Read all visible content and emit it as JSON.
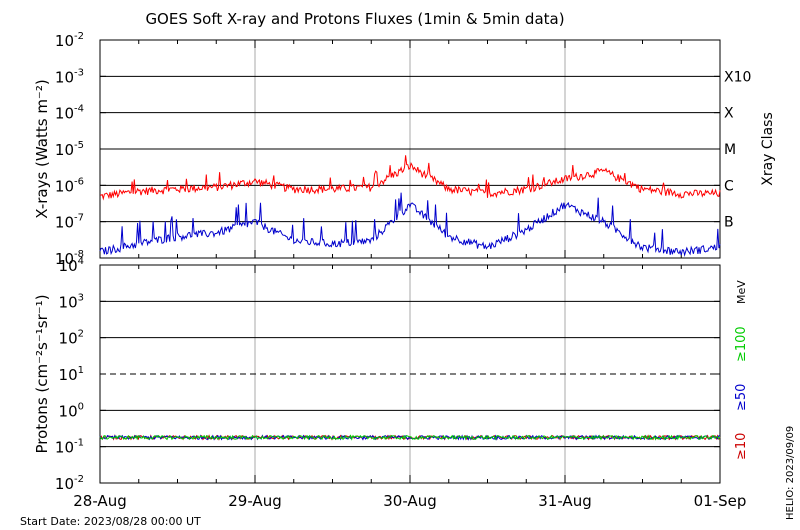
{
  "title": "GOES Soft X-ray and Protons Fluxes   (1min & 5min data)",
  "start_label": "Start Date: 2023/08/28 00:00 UT",
  "footer_credit": "HELIO: 2023/09/09",
  "chart_data": [
    {
      "type": "line",
      "panel": "xray",
      "ylabel": "X-rays (Watts m⁻²)",
      "right_label": "Xray Class",
      "y_scale": "log",
      "ylim": [
        1e-08,
        0.01
      ],
      "y_ticks": [
        {
          "base": "10",
          "exp": "-2"
        },
        {
          "base": "10",
          "exp": "-3"
        },
        {
          "base": "10",
          "exp": "-4"
        },
        {
          "base": "10",
          "exp": "-5"
        },
        {
          "base": "10",
          "exp": "-6"
        },
        {
          "base": "10",
          "exp": "-7"
        },
        {
          "base": "10",
          "exp": "-8"
        }
      ],
      "class_labels": [
        "X10",
        "X",
        "M",
        "C",
        "B"
      ],
      "horizontal_lines": [
        0.001,
        0.0001,
        1e-05,
        1e-06,
        1e-07
      ],
      "x_days": [
        0,
        1,
        2,
        3,
        4
      ],
      "series": [
        {
          "color": "#ff0000",
          "x": [
            0,
            0.25,
            0.5,
            0.75,
            1.0,
            1.25,
            1.5,
            1.75,
            2.0,
            2.25,
            2.5,
            2.75,
            3.0,
            3.25,
            3.5,
            3.75,
            4.0
          ],
          "y": [
            5e-07,
            7e-07,
            8e-07,
            9e-07,
            1.3e-06,
            8e-07,
            8e-07,
            9e-07,
            3.5e-06,
            8e-07,
            6e-07,
            8e-07,
            1.5e-06,
            2.5e-06,
            8e-07,
            6e-07,
            6e-07
          ]
        },
        {
          "color": "#0000cc",
          "x": [
            0,
            0.25,
            0.5,
            0.75,
            1.0,
            1.25,
            1.5,
            1.75,
            2.0,
            2.25,
            2.5,
            2.75,
            3.0,
            3.25,
            3.5,
            3.75,
            4.0
          ],
          "y": [
            1.5e-08,
            2.5e-08,
            4e-08,
            5e-08,
            1e-07,
            3e-08,
            2.5e-08,
            3e-08,
            3e-07,
            4e-08,
            2e-08,
            6e-08,
            3e-07,
            1e-07,
            2e-08,
            1.5e-08,
            2e-08
          ]
        }
      ]
    },
    {
      "type": "line",
      "panel": "protons",
      "ylabel": "Protons (cm⁻²s⁻¹sr⁻¹)",
      "y_scale": "log",
      "ylim": [
        0.01,
        10000
      ],
      "y_ticks": [
        {
          "base": "10",
          "exp": "4"
        },
        {
          "base": "10",
          "exp": "3"
        },
        {
          "base": "10",
          "exp": "2"
        },
        {
          "base": "10",
          "exp": "1"
        },
        {
          "base": "10",
          "exp": "0"
        },
        {
          "base": "10",
          "exp": "-1"
        },
        {
          "base": "10",
          "exp": "-2"
        }
      ],
      "horizontal_lines": [
        1000,
        100,
        1,
        0.1
      ],
      "threshold_line": 10,
      "energy_unit": "MeV",
      "energy_channels": [
        {
          "label": "≥10",
          "color": "#cc0000"
        },
        {
          "label": "≥50",
          "color": "#0000cc"
        },
        {
          "label": "≥100",
          "color": "#00cc00"
        }
      ],
      "series": [
        {
          "color": "#cc0000",
          "x": [
            0,
            4
          ],
          "y": [
            0.18,
            0.18
          ]
        },
        {
          "color": "#0000cc",
          "x": [
            0,
            4
          ],
          "y": [
            0.18,
            0.18
          ]
        },
        {
          "color": "#00cc00",
          "x": [
            0,
            4
          ],
          "y": [
            0.18,
            0.18
          ]
        }
      ],
      "x_ticks": [
        "28-Aug",
        "29-Aug",
        "30-Aug",
        "31-Aug",
        "01-Sep"
      ]
    }
  ]
}
